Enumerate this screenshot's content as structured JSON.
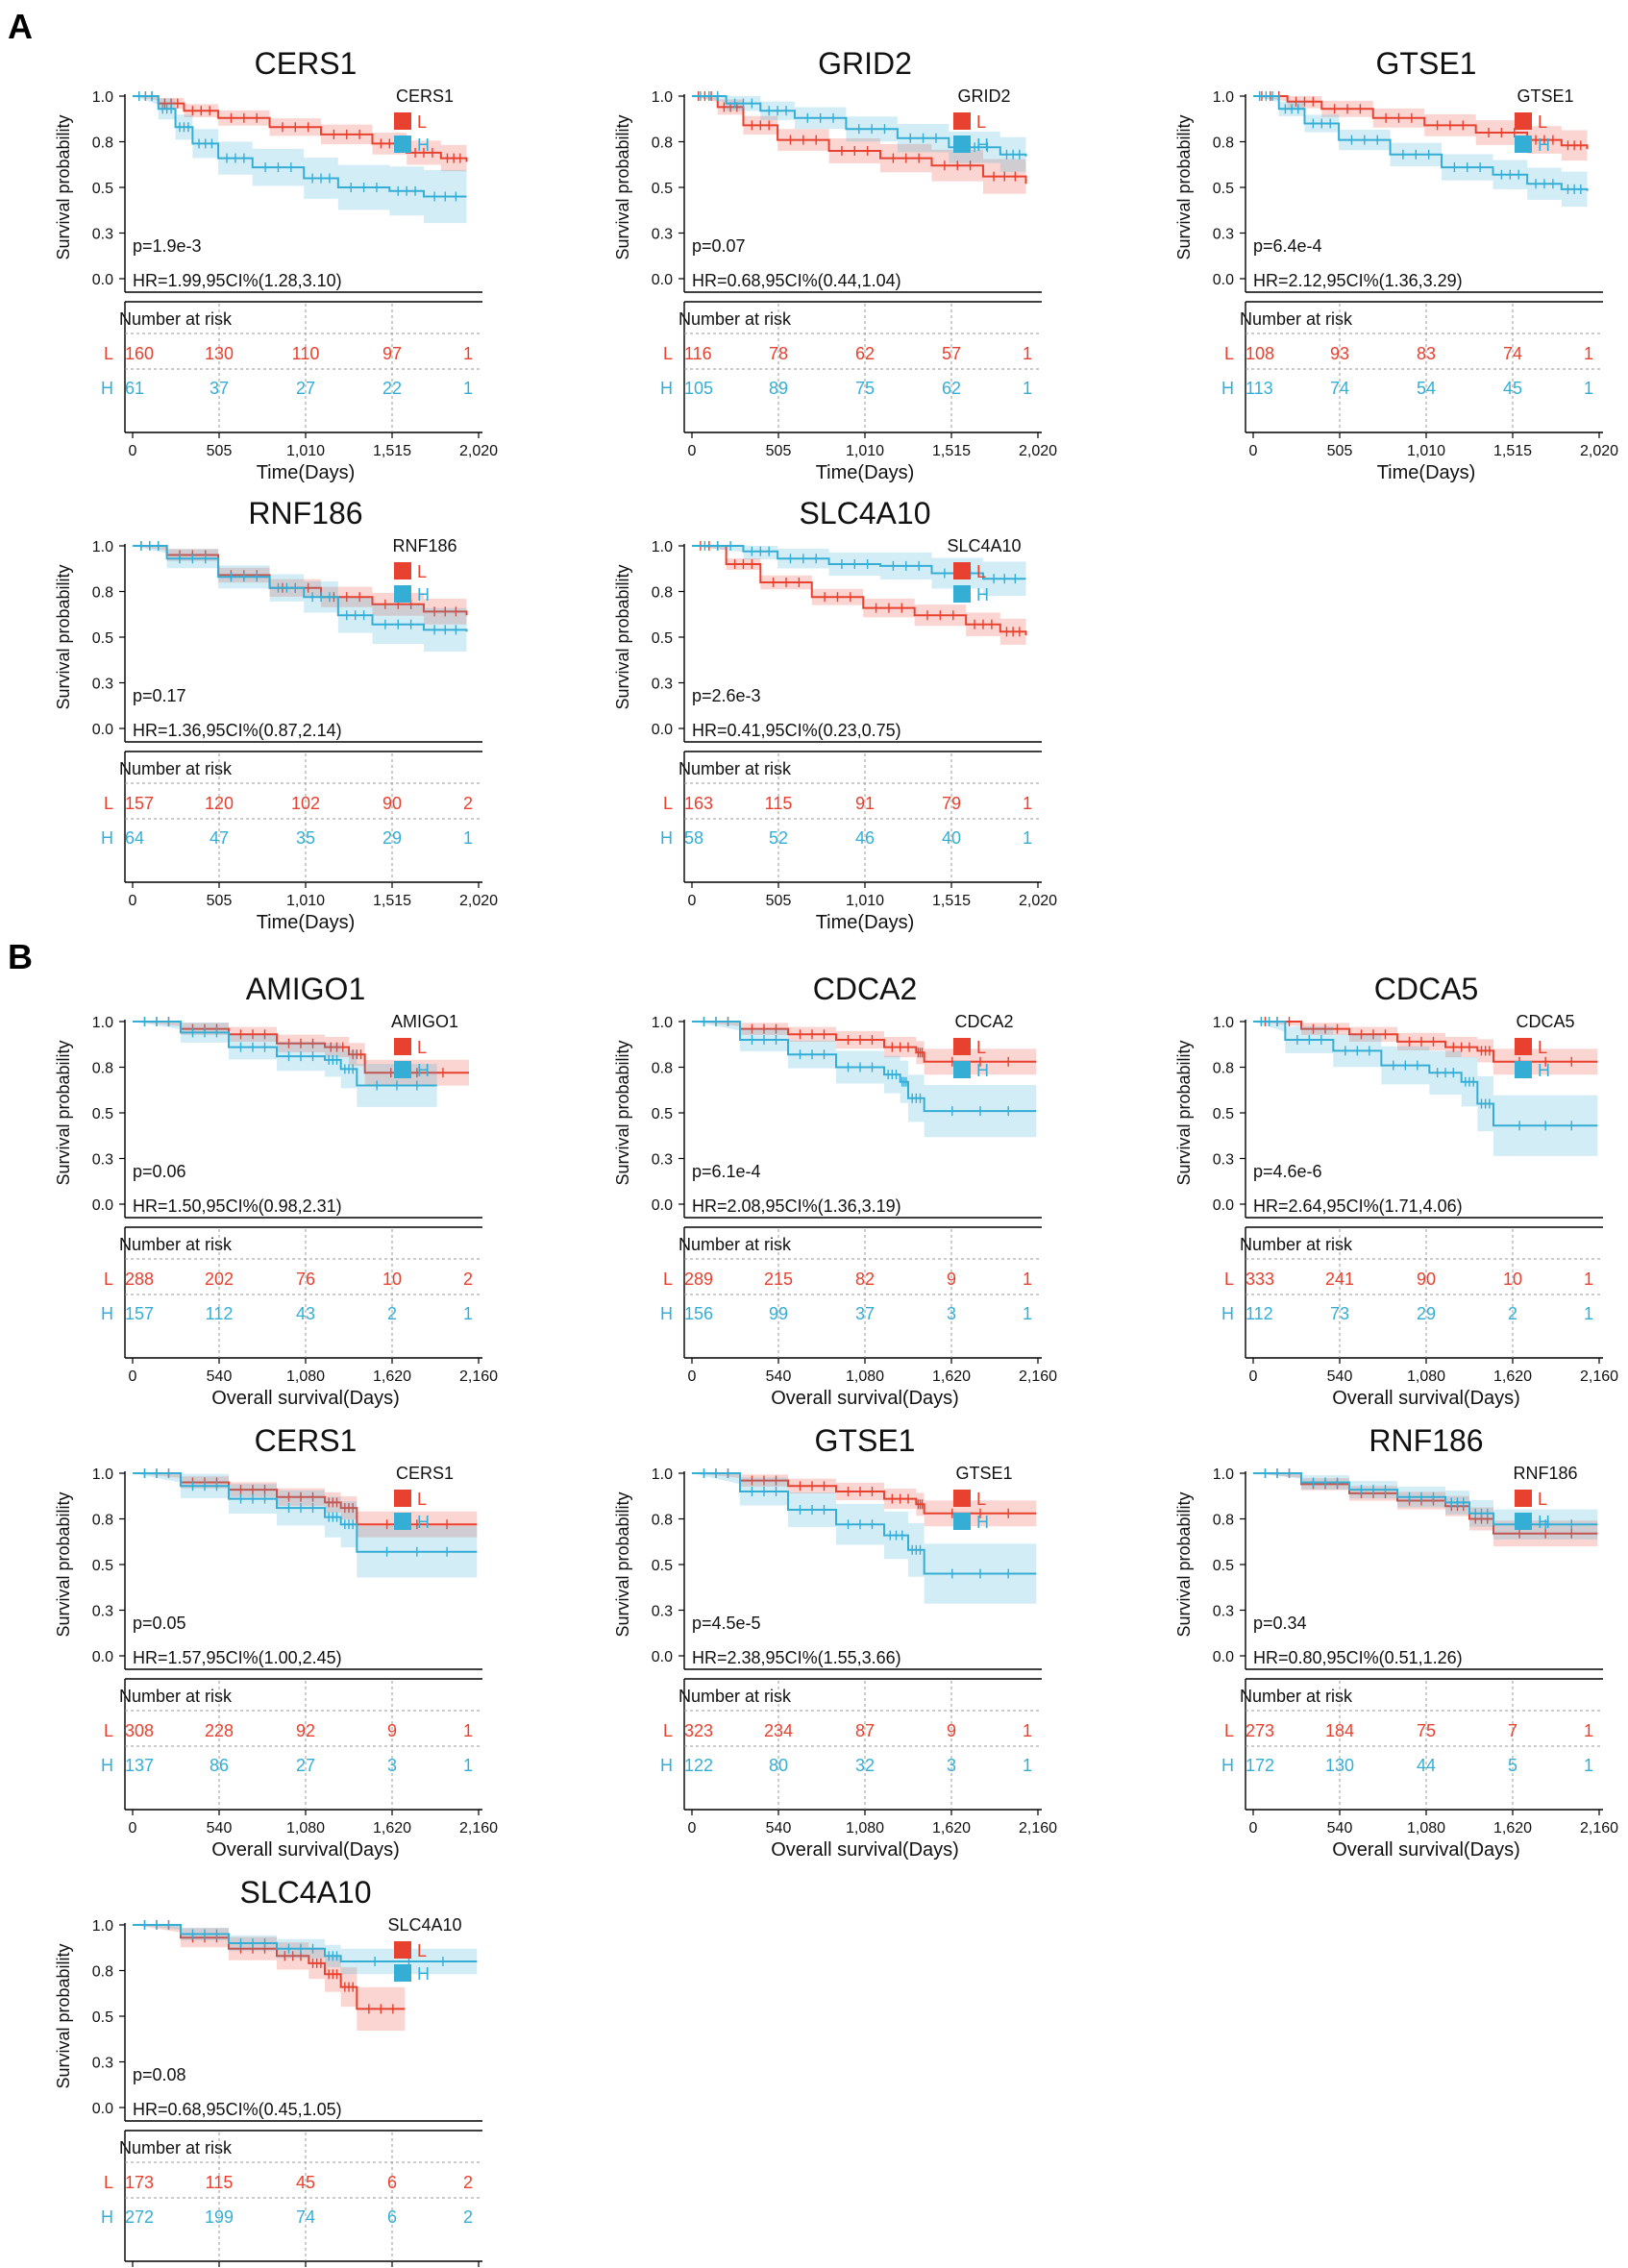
{
  "figure": {
    "colors": {
      "L": "#e8412f",
      "H": "#35aed6",
      "text": "#111111",
      "axis": "#000000",
      "grid": "#9a9a9a"
    },
    "panels": [
      {
        "label": "A",
        "x_label": "Time(Days)",
        "ticks": [
          "0",
          "505",
          "1,010",
          "1,515",
          "2,020"
        ],
        "x_max": 2020
      },
      {
        "label": "B",
        "x_label": "Overall survival(Days)",
        "ticks": [
          "0",
          "540",
          "1,080",
          "1,620",
          "2,160"
        ],
        "x_max": 2160
      }
    ],
    "y_axis_label": "Survival probability",
    "risk_header": "Number at risk",
    "group_labels": {
      "L": "L",
      "H": "H"
    }
  },
  "chart_data": [
    {
      "type": "line",
      "panel": 0,
      "title": "CERS1",
      "legend_title": "CERS1",
      "p_text": "p=1.9e-3",
      "hr_text": "HR=1.99,95CI%(1.28,3.10)",
      "ylim": [
        0,
        1
      ],
      "y_ticks": [
        "1.0",
        "0.8",
        "0.5",
        "0.3",
        "0.0"
      ],
      "series": [
        {
          "name": "L",
          "x": [
            0,
            150,
            300,
            500,
            800,
            1100,
            1400,
            1600,
            1800,
            1950
          ],
          "y": [
            1.0,
            0.96,
            0.92,
            0.88,
            0.83,
            0.79,
            0.74,
            0.69,
            0.66,
            0.64
          ],
          "ci_width": 0.06
        },
        {
          "name": "H",
          "x": [
            0,
            150,
            250,
            350,
            500,
            700,
            1000,
            1200,
            1500,
            1700,
            1950
          ],
          "y": [
            1.0,
            0.93,
            0.83,
            0.74,
            0.66,
            0.61,
            0.55,
            0.5,
            0.48,
            0.45,
            0.45
          ],
          "ci_width": 0.12
        }
      ],
      "risk": {
        "L": [
          "160",
          "130",
          "110",
          "97",
          "1"
        ],
        "H": [
          "61",
          "37",
          "27",
          "22",
          "1"
        ]
      }
    },
    {
      "type": "line",
      "panel": 0,
      "title": "GRID2",
      "legend_title": "GRID2",
      "p_text": "p=0.07",
      "hr_text": "HR=0.68,95CI%(0.44,1.04)",
      "ylim": [
        0,
        1
      ],
      "y_ticks": [
        "1.0",
        "0.8",
        "0.5",
        "0.3",
        "0.0"
      ],
      "series": [
        {
          "name": "L",
          "x": [
            0,
            150,
            300,
            500,
            800,
            1100,
            1400,
            1700,
            1950
          ],
          "y": [
            1.0,
            0.94,
            0.84,
            0.76,
            0.7,
            0.66,
            0.62,
            0.56,
            0.52
          ],
          "ci_width": 0.08
        },
        {
          "name": "H",
          "x": [
            0,
            200,
            400,
            600,
            900,
            1200,
            1500,
            1800,
            1950
          ],
          "y": [
            1.0,
            0.96,
            0.92,
            0.88,
            0.82,
            0.77,
            0.72,
            0.68,
            0.67
          ],
          "ci_width": 0.08
        }
      ],
      "risk": {
        "L": [
          "116",
          "78",
          "62",
          "57",
          "1"
        ],
        "H": [
          "105",
          "89",
          "75",
          "62",
          "1"
        ]
      }
    },
    {
      "type": "line",
      "panel": 0,
      "title": "GTSE1",
      "legend_title": "GTSE1",
      "p_text": "p=6.4e-4",
      "hr_text": "HR=2.12,95CI%(1.36,3.29)",
      "ylim": [
        0,
        1
      ],
      "y_ticks": [
        "1.0",
        "0.8",
        "0.5",
        "0.3",
        "0.0"
      ],
      "series": [
        {
          "name": "L",
          "x": [
            0,
            200,
            400,
            700,
            1000,
            1300,
            1600,
            1800,
            1950
          ],
          "y": [
            1.0,
            0.97,
            0.93,
            0.88,
            0.84,
            0.8,
            0.76,
            0.73,
            0.71
          ],
          "ci_width": 0.07
        },
        {
          "name": "H",
          "x": [
            0,
            150,
            300,
            500,
            800,
            1100,
            1400,
            1600,
            1800,
            1950
          ],
          "y": [
            1.0,
            0.93,
            0.85,
            0.76,
            0.68,
            0.61,
            0.57,
            0.52,
            0.49,
            0.48
          ],
          "ci_width": 0.08
        }
      ],
      "risk": {
        "L": [
          "108",
          "93",
          "83",
          "74",
          "1"
        ],
        "H": [
          "113",
          "74",
          "54",
          "45",
          "1"
        ]
      }
    },
    {
      "type": "line",
      "panel": 0,
      "title": "RNF186",
      "legend_title": "RNF186",
      "p_text": "p=0.17",
      "hr_text": "HR=1.36,95CI%(0.87,2.14)",
      "ylim": [
        0,
        1
      ],
      "y_ticks": [
        "1.0",
        "0.8",
        "0.5",
        "0.3",
        "0.0"
      ],
      "series": [
        {
          "name": "L",
          "x": [
            0,
            200,
            500,
            800,
            1100,
            1400,
            1700,
            1950
          ],
          "y": [
            1.0,
            0.95,
            0.84,
            0.77,
            0.72,
            0.68,
            0.64,
            0.62
          ],
          "ci_width": 0.06
        },
        {
          "name": "H",
          "x": [
            0,
            200,
            500,
            800,
            1000,
            1200,
            1400,
            1700,
            1950
          ],
          "y": [
            1.0,
            0.93,
            0.83,
            0.77,
            0.72,
            0.62,
            0.57,
            0.54,
            0.53
          ],
          "ci_width": 0.1
        }
      ],
      "risk": {
        "L": [
          "157",
          "120",
          "102",
          "90",
          "2"
        ],
        "H": [
          "64",
          "47",
          "35",
          "29",
          "1"
        ]
      }
    },
    {
      "type": "line",
      "panel": 0,
      "title": "SLC4A10",
      "legend_title": "SLC4A10",
      "p_text": "p=2.6e-3",
      "hr_text": "HR=0.41,95CI%(0.23,0.75)",
      "ylim": [
        0,
        1
      ],
      "y_ticks": [
        "1.0",
        "0.8",
        "0.5",
        "0.3",
        "0.0"
      ],
      "series": [
        {
          "name": "L",
          "x": [
            0,
            200,
            400,
            700,
            1000,
            1300,
            1600,
            1800,
            1950
          ],
          "y": [
            1.0,
            0.9,
            0.8,
            0.72,
            0.66,
            0.62,
            0.57,
            0.53,
            0.51
          ],
          "ci_width": 0.06
        },
        {
          "name": "H",
          "x": [
            0,
            300,
            500,
            800,
            1100,
            1400,
            1700,
            1950
          ],
          "y": [
            1.0,
            0.97,
            0.93,
            0.9,
            0.89,
            0.85,
            0.82,
            0.82
          ],
          "ci_width": 0.08
        }
      ],
      "risk": {
        "L": [
          "163",
          "115",
          "91",
          "79",
          "1"
        ],
        "H": [
          "58",
          "52",
          "46",
          "40",
          "1"
        ]
      }
    },
    {
      "type": "line",
      "panel": 1,
      "title": "AMIGO1",
      "legend_title": "AMIGO1",
      "p_text": "p=0.06",
      "hr_text": "HR=1.50,95CI%(0.98,2.31)",
      "ylim": [
        0,
        1
      ],
      "y_ticks": [
        "1.0",
        "0.8",
        "0.5",
        "0.3",
        "0.0"
      ],
      "series": [
        {
          "name": "L",
          "x": [
            0,
            300,
            600,
            900,
            1200,
            1350,
            1450,
            2100
          ],
          "y": [
            1.0,
            0.96,
            0.93,
            0.88,
            0.86,
            0.82,
            0.72,
            0.72
          ],
          "ci_width": 0.06
        },
        {
          "name": "H",
          "x": [
            0,
            300,
            600,
            900,
            1200,
            1300,
            1400,
            1900
          ],
          "y": [
            1.0,
            0.94,
            0.86,
            0.81,
            0.79,
            0.74,
            0.65,
            0.65
          ],
          "ci_width": 0.1
        }
      ],
      "risk": {
        "L": [
          "288",
          "202",
          "76",
          "10",
          "2"
        ],
        "H": [
          "157",
          "112",
          "43",
          "2",
          "1"
        ]
      }
    },
    {
      "type": "line",
      "panel": 1,
      "title": "CDCA2",
      "legend_title": "CDCA2",
      "p_text": "p=6.1e-4",
      "hr_text": "HR=2.08,95CI%(1.36,3.19)",
      "ylim": [
        0,
        1
      ],
      "y_ticks": [
        "1.0",
        "0.8",
        "0.5",
        "0.3",
        "0.0"
      ],
      "series": [
        {
          "name": "L",
          "x": [
            0,
            300,
            600,
            900,
            1200,
            1400,
            1450,
            2150
          ],
          "y": [
            1.0,
            0.96,
            0.93,
            0.9,
            0.86,
            0.83,
            0.78,
            0.78
          ],
          "ci_width": 0.06
        },
        {
          "name": "H",
          "x": [
            0,
            300,
            600,
            900,
            1200,
            1300,
            1350,
            1450,
            2150
          ],
          "y": [
            1.0,
            0.9,
            0.82,
            0.75,
            0.71,
            0.67,
            0.58,
            0.51,
            0.51
          ],
          "ci_width": 0.12
        }
      ],
      "risk": {
        "L": [
          "289",
          "215",
          "82",
          "9",
          "1"
        ],
        "H": [
          "156",
          "99",
          "37",
          "3",
          "1"
        ]
      }
    },
    {
      "type": "line",
      "panel": 1,
      "title": "CDCA5",
      "legend_title": "CDCA5",
      "p_text": "p=4.6e-6",
      "hr_text": "HR=2.64,95CI%(1.71,4.06)",
      "ylim": [
        0,
        1
      ],
      "y_ticks": [
        "1.0",
        "0.8",
        "0.5",
        "0.3",
        "0.0"
      ],
      "series": [
        {
          "name": "L",
          "x": [
            0,
            300,
            600,
            900,
            1200,
            1400,
            1500,
            2150
          ],
          "y": [
            1.0,
            0.96,
            0.93,
            0.89,
            0.86,
            0.84,
            0.78,
            0.78
          ],
          "ci_width": 0.06
        },
        {
          "name": "H",
          "x": [
            0,
            200,
            500,
            800,
            1100,
            1300,
            1400,
            1500,
            2150
          ],
          "y": [
            1.0,
            0.9,
            0.84,
            0.76,
            0.72,
            0.67,
            0.55,
            0.43,
            0.43
          ],
          "ci_width": 0.14
        }
      ],
      "risk": {
        "L": [
          "333",
          "241",
          "90",
          "10",
          "1"
        ],
        "H": [
          "112",
          "73",
          "29",
          "2",
          "1"
        ]
      }
    },
    {
      "type": "line",
      "panel": 1,
      "title": "CERS1",
      "legend_title": "CERS1",
      "p_text": "p=0.05",
      "hr_text": "HR=1.57,95CI%(1.00,2.45)",
      "ylim": [
        0,
        1
      ],
      "y_ticks": [
        "1.0",
        "0.8",
        "0.5",
        "0.3",
        "0.0"
      ],
      "series": [
        {
          "name": "L",
          "x": [
            0,
            300,
            600,
            900,
            1200,
            1300,
            1400,
            2150
          ],
          "y": [
            1.0,
            0.95,
            0.91,
            0.87,
            0.84,
            0.81,
            0.72,
            0.72
          ],
          "ci_width": 0.06
        },
        {
          "name": "H",
          "x": [
            0,
            300,
            600,
            900,
            1200,
            1300,
            1400,
            2150
          ],
          "y": [
            1.0,
            0.93,
            0.86,
            0.81,
            0.76,
            0.72,
            0.57,
            0.57
          ],
          "ci_width": 0.12
        }
      ],
      "risk": {
        "L": [
          "308",
          "228",
          "92",
          "9",
          "1"
        ],
        "H": [
          "137",
          "86",
          "27",
          "3",
          "1"
        ]
      }
    },
    {
      "type": "line",
      "panel": 1,
      "title": "GTSE1",
      "legend_title": "GTSE1",
      "p_text": "p=4.5e-5",
      "hr_text": "HR=2.38,95CI%(1.55,3.66)",
      "ylim": [
        0,
        1
      ],
      "y_ticks": [
        "1.0",
        "0.8",
        "0.5",
        "0.3",
        "0.0"
      ],
      "series": [
        {
          "name": "L",
          "x": [
            0,
            300,
            600,
            900,
            1200,
            1400,
            1450,
            2150
          ],
          "y": [
            1.0,
            0.96,
            0.93,
            0.9,
            0.86,
            0.83,
            0.78,
            0.78
          ],
          "ci_width": 0.06
        },
        {
          "name": "H",
          "x": [
            0,
            300,
            600,
            900,
            1200,
            1350,
            1450,
            2150
          ],
          "y": [
            1.0,
            0.9,
            0.8,
            0.72,
            0.66,
            0.58,
            0.45,
            0.45
          ],
          "ci_width": 0.14
        }
      ],
      "risk": {
        "L": [
          "323",
          "234",
          "87",
          "9",
          "1"
        ],
        "H": [
          "122",
          "80",
          "32",
          "3",
          "1"
        ]
      }
    },
    {
      "type": "line",
      "panel": 1,
      "title": "RNF186",
      "legend_title": "RNF186",
      "p_text": "p=0.34",
      "hr_text": "HR=0.80,95CI%(0.51,1.26)",
      "ylim": [
        0,
        1
      ],
      "y_ticks": [
        "1.0",
        "0.8",
        "0.5",
        "0.3",
        "0.0"
      ],
      "series": [
        {
          "name": "L",
          "x": [
            0,
            300,
            600,
            900,
            1200,
            1350,
            1500,
            2150
          ],
          "y": [
            1.0,
            0.94,
            0.89,
            0.85,
            0.82,
            0.75,
            0.67,
            0.67
          ],
          "ci_width": 0.06
        },
        {
          "name": "H",
          "x": [
            0,
            300,
            600,
            900,
            1200,
            1350,
            1500,
            2150
          ],
          "y": [
            1.0,
            0.95,
            0.91,
            0.87,
            0.84,
            0.78,
            0.72,
            0.72
          ],
          "ci_width": 0.07
        }
      ],
      "risk": {
        "L": [
          "273",
          "184",
          "75",
          "7",
          "1"
        ],
        "H": [
          "172",
          "130",
          "44",
          "5",
          "1"
        ]
      }
    },
    {
      "type": "line",
      "panel": 1,
      "title": "SLC4A10",
      "legend_title": "SLC4A10",
      "p_text": "p=0.08",
      "hr_text": "HR=0.68,95CI%(0.45,1.05)",
      "ylim": [
        0,
        1
      ],
      "y_ticks": [
        "1.0",
        "0.8",
        "0.5",
        "0.3",
        "0.0"
      ],
      "series": [
        {
          "name": "L",
          "x": [
            0,
            300,
            600,
            900,
            1100,
            1200,
            1300,
            1400,
            1700
          ],
          "y": [
            1.0,
            0.93,
            0.87,
            0.83,
            0.79,
            0.73,
            0.66,
            0.54,
            0.54
          ],
          "ci_width": 0.1
        },
        {
          "name": "H",
          "x": [
            0,
            300,
            600,
            900,
            1200,
            1300,
            2150
          ],
          "y": [
            1.0,
            0.95,
            0.9,
            0.87,
            0.83,
            0.8,
            0.8
          ],
          "ci_width": 0.06
        }
      ],
      "risk": {
        "L": [
          "173",
          "115",
          "45",
          "6",
          "2"
        ],
        "H": [
          "272",
          "199",
          "74",
          "6",
          "2"
        ]
      }
    }
  ]
}
